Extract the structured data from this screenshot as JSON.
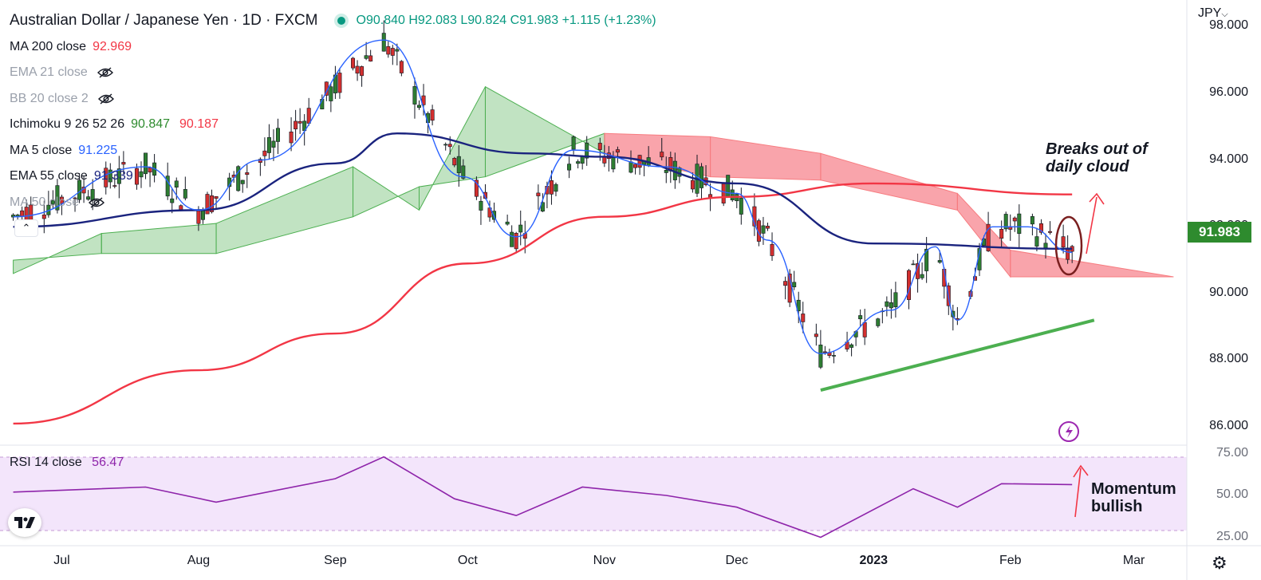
{
  "header": {
    "title": "Australian Dollar / Japanese Yen · 1D · FXCM",
    "open": "O90.840",
    "high": "H92.083",
    "low": "L90.824",
    "close": "C91.983",
    "change": "+1.115 (+1.23%)"
  },
  "indicators": [
    {
      "label": "MA 200 close",
      "value": "92.969",
      "color": "#f23645",
      "hidden": false
    },
    {
      "label": "EMA 21 close",
      "value": "",
      "color": "#9aa0ab",
      "hidden": true
    },
    {
      "label": "BB 20 close 2",
      "value": "",
      "color": "#9aa0ab",
      "hidden": true
    },
    {
      "label": "Ichimoku 9 26 52 26",
      "value": "90.847",
      "value2": "90.187",
      "color": "#2e8b2e",
      "color2": "#f23645",
      "hidden": false
    },
    {
      "label": "MA 5 close",
      "value": "91.225",
      "color": "#2962ff",
      "hidden": false
    },
    {
      "label": "EMA 55 close",
      "value": "91.339",
      "color": "#1a237e",
      "hidden": false
    },
    {
      "label": "MA 50 close",
      "value": "",
      "color": "#9aa0ab",
      "hidden": true
    }
  ],
  "currency": "JPY",
  "last_price": "91.983",
  "rsi": {
    "label": "RSI 14 close",
    "value": "56.47"
  },
  "annotations": {
    "cloud_note_line1": "Breaks out of",
    "cloud_note_line2": "daily cloud",
    "momentum_line1": "Momentum",
    "momentum_line2": "bullish"
  },
  "chart_data": {
    "type": "line",
    "symbol": "AUDJPY",
    "timeframe": "1D",
    "x_ticks": [
      "Jul",
      "Aug",
      "Sep",
      "Oct",
      "Nov",
      "Dec",
      "2023",
      "Feb",
      "Mar"
    ],
    "y_ticks": [
      "98.000",
      "96.000",
      "94.000",
      "92.000",
      "90.000",
      "88.000",
      "86.000"
    ],
    "ylim": [
      85.5,
      98.8
    ],
    "rsi_ticks": [
      "75.00",
      "50.00",
      "25.00"
    ],
    "rsi_ylim": [
      20,
      80
    ],
    "series": [
      {
        "name": "MA 200 close",
        "points": [
          [
            "2022-06-20",
            86.1
          ],
          [
            "2022-08-01",
            87.7
          ],
          [
            "2022-09-01",
            88.8
          ],
          [
            "2022-10-01",
            90.9
          ],
          [
            "2022-11-01",
            92.3
          ],
          [
            "2022-12-01",
            92.9
          ],
          [
            "2023-01-01",
            93.3
          ],
          [
            "2023-02-15",
            92.97
          ]
        ]
      },
      {
        "name": "EMA 55 close",
        "points": [
          [
            "2022-06-20",
            92.0
          ],
          [
            "2022-08-01",
            92.5
          ],
          [
            "2022-09-01",
            93.9
          ],
          [
            "2022-09-15",
            94.8
          ],
          [
            "2022-10-15",
            94.2
          ],
          [
            "2022-11-01",
            94.1
          ],
          [
            "2022-12-01",
            93.3
          ],
          [
            "2023-01-01",
            91.5
          ],
          [
            "2023-02-15",
            91.34
          ]
        ]
      },
      {
        "name": "MA 5 close",
        "points": [
          [
            "2022-06-20",
            92.3
          ],
          [
            "2022-07-20",
            93.8
          ],
          [
            "2022-08-01",
            92.5
          ],
          [
            "2022-08-15",
            94.0
          ],
          [
            "2022-09-12",
            97.6
          ],
          [
            "2022-09-30",
            93.5
          ],
          [
            "2022-10-12",
            91.7
          ],
          [
            "2022-10-25",
            94.3
          ],
          [
            "2022-11-15",
            93.8
          ],
          [
            "2022-12-01",
            93.0
          ],
          [
            "2022-12-08",
            91.6
          ],
          [
            "2022-12-20",
            88.2
          ],
          [
            "2023-01-05",
            89.5
          ],
          [
            "2023-01-15",
            91.4
          ],
          [
            "2023-01-20",
            89.2
          ],
          [
            "2023-01-28",
            92.0
          ],
          [
            "2023-02-05",
            92.0
          ],
          [
            "2023-02-15",
            91.23
          ]
        ]
      }
    ],
    "ichimoku_cloud": [
      [
        "2022-06-20",
        90.6,
        91.0
      ],
      [
        "2022-07-10",
        91.8,
        91.2
      ],
      [
        "2022-08-05",
        92.1,
        91.2
      ],
      [
        "2022-09-05",
        93.8,
        92.3
      ],
      [
        "2022-09-20",
        92.5,
        93.2
      ],
      [
        "2022-10-05",
        96.2,
        93.5
      ],
      [
        "2022-11-01",
        94.2,
        94.8
      ],
      [
        "2022-11-25",
        93.5,
        94.7
      ],
      [
        "2022-12-20",
        93.4,
        94.2
      ],
      [
        "2023-01-20",
        92.5,
        93.0
      ],
      [
        "2023-02-01",
        90.5,
        91.3
      ],
      [
        "2023-03-10",
        90.5,
        90.5
      ]
    ],
    "support_trendline": [
      [
        "2022-12-20",
        87.1
      ],
      [
        "2023-02-20",
        89.2
      ]
    ],
    "rsi_series": [
      [
        "2022-06-20",
        52
      ],
      [
        "2022-07-20",
        55
      ],
      [
        "2022-08-05",
        46
      ],
      [
        "2022-09-01",
        60
      ],
      [
        "2022-09-12",
        73
      ],
      [
        "2022-09-28",
        48
      ],
      [
        "2022-10-12",
        38
      ],
      [
        "2022-10-27",
        55
      ],
      [
        "2022-11-15",
        50
      ],
      [
        "2022-12-01",
        43
      ],
      [
        "2022-12-20",
        25
      ],
      [
        "2023-01-10",
        54
      ],
      [
        "2023-01-20",
        43
      ],
      [
        "2023-01-30",
        57
      ],
      [
        "2023-02-15",
        56.47
      ]
    ],
    "last_close": 91.983,
    "grid": false,
    "legend": "top-left"
  }
}
